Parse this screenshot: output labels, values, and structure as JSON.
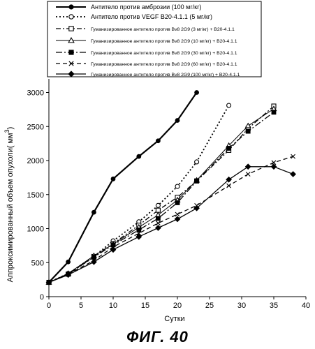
{
  "figure_caption": "ФИГ. 40",
  "chart_data": {
    "type": "line",
    "xlabel": "Сутки",
    "ylabel_main": "Аппроксимированный объем опухоли(",
    "ylabel_unit": "мм",
    "ylabel_sup": "3",
    "ylabel_close": ")",
    "xlim": [
      0,
      40
    ],
    "ylim": [
      0,
      3200
    ],
    "x_ticks": [
      0,
      5,
      10,
      15,
      20,
      25,
      30,
      35,
      40
    ],
    "y_ticks": [
      0,
      500,
      1000,
      1500,
      2000,
      2500,
      3000
    ],
    "grid": false,
    "legend_position": "top",
    "series": [
      {
        "name": "Антитело против амброзии (100 мг/кг)",
        "marker": "filled-circle",
        "dash": "solid",
        "stroke_width": 2.2,
        "x": [
          0,
          3,
          7,
          10,
          14,
          17,
          20,
          23
        ],
        "y": [
          210,
          510,
          1240,
          1730,
          2060,
          2290,
          2590,
          3000
        ]
      },
      {
        "name": "Антитело против VEGF B20-4.1.1 (5 мг/кг)",
        "marker": "open-circle",
        "dash": "dotted",
        "stroke_width": 1.8,
        "x": [
          0,
          3,
          7,
          10,
          14,
          17,
          20,
          23,
          28
        ],
        "y": [
          210,
          340,
          590,
          820,
          1100,
          1340,
          1620,
          1980,
          2810
        ]
      },
      {
        "name": "Гуманизированное антитело против Bv8 2G9 (3 мг/кг) + B20-4.1.1",
        "marker": "open-square",
        "dash": "dashdot",
        "stroke_width": 1.3,
        "x": [
          0,
          3,
          7,
          10,
          14,
          17,
          20,
          23,
          28,
          31,
          35
        ],
        "y": [
          210,
          330,
          590,
          780,
          1050,
          1270,
          1460,
          1700,
          2150,
          2470,
          2800
        ]
      },
      {
        "name": "Гуманизированное антитело против Bv8 2G9 (10 мг/кг) + B20-4.1.1",
        "marker": "open-triangle",
        "dash": "solid",
        "stroke_width": 1.0,
        "x": [
          0,
          3,
          7,
          10,
          14,
          17,
          20,
          23,
          28,
          31,
          35
        ],
        "y": [
          210,
          340,
          600,
          770,
          1020,
          1200,
          1420,
          1710,
          2220,
          2510,
          2760
        ]
      },
      {
        "name": "Гуманизированное антитело против Bv8 2G9 (30 мг/кг) + B20-4.1.1",
        "marker": "filled-square",
        "dash": "dashdot2",
        "stroke_width": 1.3,
        "x": [
          0,
          3,
          7,
          10,
          14,
          17,
          20,
          23,
          28,
          31,
          35
        ],
        "y": [
          210,
          330,
          580,
          760,
          980,
          1150,
          1380,
          1700,
          2180,
          2430,
          2710
        ]
      },
      {
        "name": "Гуманизированное антитело против Bv8 2G9 (60 мг/кг) + B20-4.1.1",
        "marker": "x",
        "dash": "dashed",
        "stroke_width": 1.3,
        "x": [
          0,
          3,
          7,
          10,
          14,
          17,
          20,
          23,
          28,
          31,
          35,
          38
        ],
        "y": [
          210,
          330,
          530,
          730,
          930,
          1080,
          1210,
          1340,
          1630,
          1800,
          1970,
          2060
        ]
      },
      {
        "name": "Гуманизированное антитело против Bv8 2G9 (100 мг/кг) + B20-4.1.1",
        "marker": "filled-diamond",
        "dash": "solid",
        "stroke_width": 1.3,
        "x": [
          0,
          3,
          7,
          10,
          14,
          17,
          20,
          23,
          28,
          31,
          35,
          38
        ],
        "y": [
          210,
          320,
          510,
          690,
          880,
          1010,
          1140,
          1300,
          1720,
          1910,
          1910,
          1800
        ]
      }
    ]
  }
}
